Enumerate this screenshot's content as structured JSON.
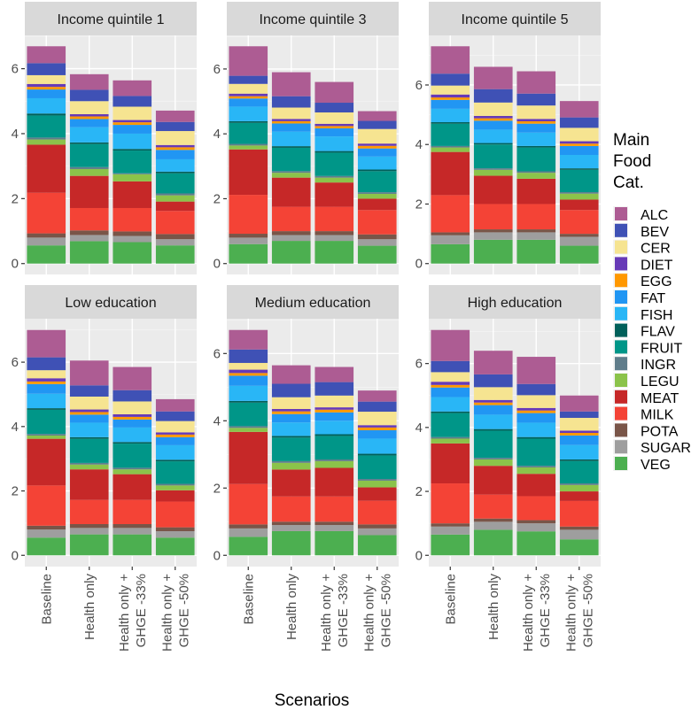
{
  "chart_data": {
    "type": "bar",
    "stacked": true,
    "xlabel": "Scenarios",
    "ylabel": "",
    "legend": {
      "title": [
        "Main",
        "Food",
        "Cat."
      ],
      "position": "right"
    },
    "categories": [
      "Baseline",
      "Health only",
      "Health only + GHGE -33%",
      "Health only + GHGE -50%"
    ],
    "category_lines": [
      [
        "Baseline"
      ],
      [
        "Health only"
      ],
      [
        "Health only +",
        "GHGE -33%"
      ],
      [
        "Health only +",
        "GHGE -50%"
      ]
    ],
    "series_names": [
      "VEG",
      "SUGAR",
      "POTA",
      "MILK",
      "MEAT",
      "LEGU",
      "INGR",
      "FRUIT",
      "FLAV",
      "FISH",
      "FAT",
      "EGG",
      "DIET",
      "CER",
      "BEV",
      "ALC"
    ],
    "legend_order": [
      "ALC",
      "BEV",
      "CER",
      "DIET",
      "EGG",
      "FAT",
      "FISH",
      "FLAV",
      "FRUIT",
      "INGR",
      "LEGU",
      "MEAT",
      "MILK",
      "POTA",
      "SUGAR",
      "VEG"
    ],
    "colors": {
      "ALC": "#ad5c93",
      "BEV": "#3f51b5",
      "CER": "#f6e491",
      "DIET": "#673ab7",
      "EGG": "#ff9800",
      "FAT": "#2196f3",
      "FISH": "#29b6f6",
      "FLAV": "#00605a",
      "FRUIT": "#009688",
      "INGR": "#607d8b",
      "LEGU": "#8bc34a",
      "MEAT": "#c62828",
      "MILK": "#f44336",
      "POTA": "#795548",
      "SUGAR": "#9e9e9e",
      "VEG": "#4caf50"
    },
    "y_ticks": [
      0,
      2,
      4,
      6
    ],
    "panels": [
      {
        "title": "Income quintile 1",
        "values": [
          [
            0.56,
            0.24,
            0.13,
            1.25,
            1.48,
            0.16,
            0.06,
            0.68,
            0.06,
            0.47,
            0.27,
            0.08,
            0.09,
            0.27,
            0.37,
            0.52
          ],
          [
            0.69,
            0.19,
            0.14,
            0.69,
            0.99,
            0.21,
            0.06,
            0.71,
            0.05,
            0.47,
            0.25,
            0.08,
            0.07,
            0.4,
            0.35,
            0.48
          ],
          [
            0.66,
            0.19,
            0.14,
            0.72,
            0.82,
            0.22,
            0.03,
            0.7,
            0.05,
            0.47,
            0.27,
            0.08,
            0.07,
            0.41,
            0.33,
            0.48
          ],
          [
            0.56,
            0.19,
            0.16,
            0.71,
            0.29,
            0.19,
            0.06,
            0.62,
            0.05,
            0.38,
            0.29,
            0.08,
            0.07,
            0.43,
            0.28,
            0.35
          ]
        ]
      },
      {
        "title": "Income quintile 3",
        "values": [
          [
            0.6,
            0.2,
            0.12,
            1.2,
            1.4,
            0.12,
            0.05,
            0.65,
            0.05,
            0.45,
            0.25,
            0.07,
            0.08,
            0.3,
            0.25,
            0.91
          ],
          [
            0.7,
            0.18,
            0.12,
            0.75,
            0.9,
            0.15,
            0.05,
            0.72,
            0.05,
            0.45,
            0.25,
            0.07,
            0.07,
            0.35,
            0.35,
            0.74
          ],
          [
            0.7,
            0.18,
            0.12,
            0.75,
            0.75,
            0.15,
            0.05,
            0.72,
            0.05,
            0.45,
            0.25,
            0.07,
            0.07,
            0.35,
            0.3,
            0.64
          ],
          [
            0.55,
            0.2,
            0.15,
            0.75,
            0.35,
            0.15,
            0.05,
            0.65,
            0.05,
            0.4,
            0.25,
            0.08,
            0.07,
            0.45,
            0.25,
            0.3
          ]
        ]
      },
      {
        "title": "Income quintile 5",
        "values": [
          [
            0.65,
            0.3,
            0.1,
            1.25,
            1.45,
            0.15,
            0.05,
            0.75,
            0.05,
            0.45,
            0.3,
            0.08,
            0.1,
            0.3,
            0.4,
            0.92
          ],
          [
            0.8,
            0.25,
            0.1,
            0.85,
            0.95,
            0.2,
            0.05,
            0.8,
            0.05,
            0.45,
            0.3,
            0.08,
            0.08,
            0.45,
            0.45,
            0.75
          ],
          [
            0.8,
            0.25,
            0.1,
            0.85,
            0.85,
            0.2,
            0.05,
            0.8,
            0.05,
            0.45,
            0.3,
            0.08,
            0.08,
            0.45,
            0.4,
            0.75
          ],
          [
            0.6,
            0.3,
            0.1,
            0.8,
            0.35,
            0.2,
            0.05,
            0.75,
            0.05,
            0.45,
            0.3,
            0.08,
            0.08,
            0.45,
            0.35,
            0.55
          ]
        ]
      },
      {
        "title": "Low education",
        "values": [
          [
            0.55,
            0.25,
            0.12,
            1.25,
            1.45,
            0.1,
            0.05,
            0.75,
            0.05,
            0.45,
            0.3,
            0.08,
            0.1,
            0.25,
            0.4,
            0.85
          ],
          [
            0.65,
            0.2,
            0.12,
            0.75,
            0.95,
            0.15,
            0.05,
            0.75,
            0.05,
            0.45,
            0.25,
            0.08,
            0.08,
            0.4,
            0.35,
            0.77
          ],
          [
            0.65,
            0.2,
            0.12,
            0.75,
            0.8,
            0.15,
            0.05,
            0.75,
            0.05,
            0.45,
            0.25,
            0.08,
            0.08,
            0.4,
            0.35,
            0.72
          ],
          [
            0.55,
            0.2,
            0.12,
            0.8,
            0.35,
            0.15,
            0.05,
            0.7,
            0.05,
            0.45,
            0.25,
            0.08,
            0.07,
            0.35,
            0.3,
            0.38
          ]
        ]
      },
      {
        "title": "Medium education",
        "values": [
          [
            0.55,
            0.25,
            0.12,
            1.2,
            1.55,
            0.12,
            0.05,
            0.7,
            0.05,
            0.45,
            0.3,
            0.08,
            0.1,
            0.2,
            0.4,
            0.58
          ],
          [
            0.72,
            0.18,
            0.1,
            0.75,
            0.8,
            0.2,
            0.05,
            0.7,
            0.05,
            0.4,
            0.25,
            0.08,
            0.07,
            0.35,
            0.4,
            0.55
          ],
          [
            0.72,
            0.18,
            0.1,
            0.75,
            0.85,
            0.2,
            0.05,
            0.7,
            0.05,
            0.4,
            0.25,
            0.08,
            0.07,
            0.35,
            0.4,
            0.45
          ],
          [
            0.6,
            0.2,
            0.12,
            0.7,
            0.4,
            0.2,
            0.05,
            0.7,
            0.05,
            0.45,
            0.25,
            0.08,
            0.07,
            0.4,
            0.3,
            0.33
          ]
        ]
      },
      {
        "title": "High education",
        "values": [
          [
            0.65,
            0.25,
            0.1,
            1.25,
            1.25,
            0.15,
            0.05,
            0.75,
            0.05,
            0.45,
            0.3,
            0.08,
            0.1,
            0.3,
            0.35,
            0.97
          ],
          [
            0.8,
            0.25,
            0.1,
            0.75,
            0.9,
            0.2,
            0.05,
            0.85,
            0.05,
            0.45,
            0.3,
            0.08,
            0.08,
            0.4,
            0.4,
            0.74
          ],
          [
            0.75,
            0.25,
            0.1,
            0.75,
            0.7,
            0.2,
            0.05,
            0.85,
            0.05,
            0.45,
            0.3,
            0.08,
            0.08,
            0.4,
            0.35,
            0.85
          ],
          [
            0.5,
            0.3,
            0.1,
            0.8,
            0.3,
            0.2,
            0.05,
            0.7,
            0.05,
            0.45,
            0.3,
            0.08,
            0.07,
            0.4,
            0.2,
            0.5
          ]
        ]
      }
    ]
  }
}
